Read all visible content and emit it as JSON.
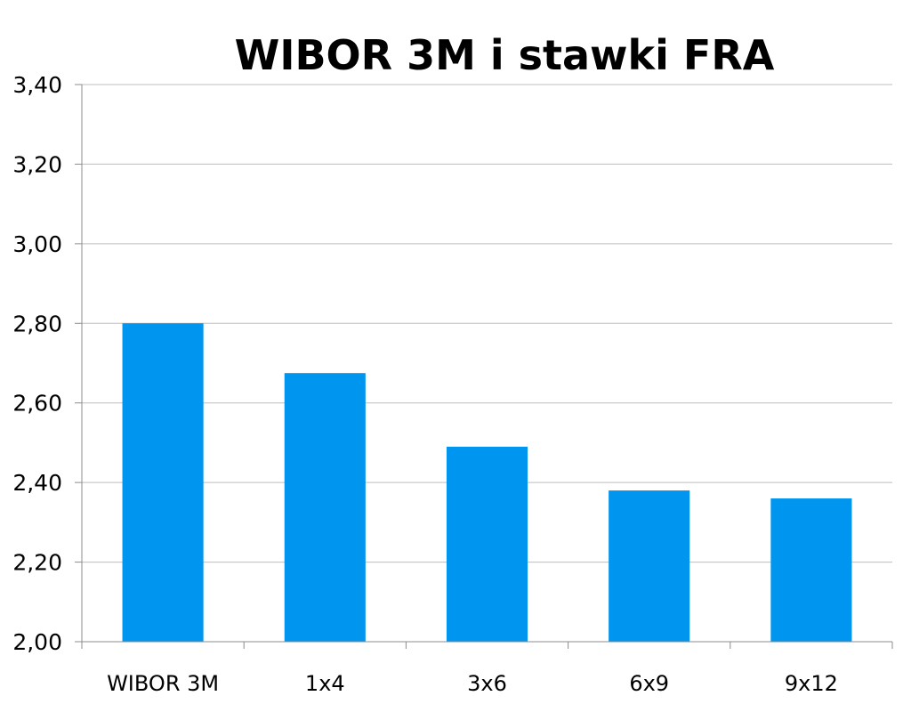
{
  "chart_data": {
    "type": "bar",
    "title": "WIBOR 3M i stawki FRA",
    "categories": [
      "WIBOR 3M",
      "1x4",
      "3x6",
      "6x9",
      "9x12"
    ],
    "values": [
      2.8,
      2.675,
      2.49,
      2.38,
      2.36
    ],
    "ylim": [
      2.0,
      3.4
    ],
    "yticks": [
      "2,00",
      "2,20",
      "2,40",
      "2,60",
      "2,80",
      "3,00",
      "3,20",
      "3,40"
    ],
    "grid": true,
    "bar_color": "#0095ee",
    "legend": "none"
  }
}
